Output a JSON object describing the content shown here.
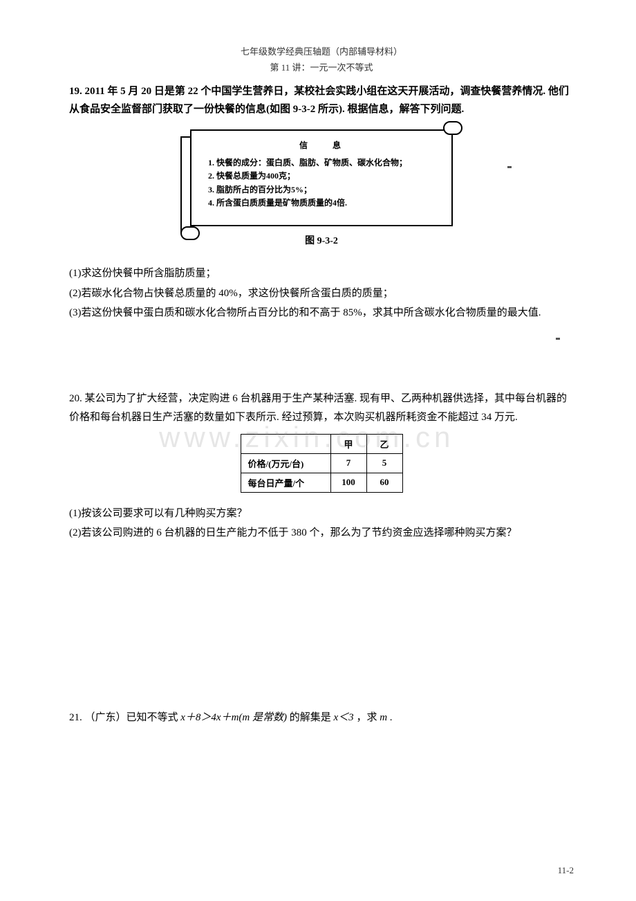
{
  "header": {
    "line1": "七年级数学经典压轴题（内部辅导材料）",
    "line2": "第 11 讲：一元一次不等式"
  },
  "q19": {
    "label": "19.",
    "intro": "2011 年 5 月 20 日是第 22 个中国学生营养日，某校社会实践小组在这天开展活动，调查快餐营养情况. 他们从食品安全监督部门获取了一份快餐的信息(如图 9-3-2 所示). 根据信息，解答下列问题.",
    "scroll": {
      "title": "信　息",
      "items": [
        "1. 快餐的成分：蛋白质、脂肪、矿物质、碳水化合物；",
        "2. 快餐总质量为400克；",
        "3. 脂肪所占的百分比为5%；",
        "4. 所含蛋白质质量是矿物质质量的4倍."
      ]
    },
    "caption": "图 9-3-2",
    "subs": [
      "(1)求这份快餐中所含脂肪质量；",
      "(2)若碳水化合物占快餐总质量的 40%，求这份快餐所含蛋白质的质量；",
      "(3)若这份快餐中蛋白质和碳水化合物所占百分比的和不高于 85%，求其中所含碳水化合物质量的最大值."
    ]
  },
  "q20": {
    "label": "20.",
    "intro": "某公司为了扩大经营，决定购进 6 台机器用于生产某种活塞. 现有甲、乙两种机器供选择，其中每台机器的价格和每台机器日生产活塞的数量如下表所示. 经过预算，本次购买机器所耗资金不能超过 34 万元.",
    "table": {
      "cols": [
        "",
        "甲",
        "乙"
      ],
      "rows": [
        {
          "label": "价格/(万元/台)",
          "c1": "7",
          "c2": "5"
        },
        {
          "label": "每台日产量/个",
          "c1": "100",
          "c2": "60"
        }
      ]
    },
    "subs": [
      "(1)按该公司要求可以有几种购买方案？",
      "(2)若该公司购进的 6 台机器的日生产能力不低于 380 个，那么为了节约资金应选择哪种购买方案？"
    ]
  },
  "q21": {
    "label": "21.",
    "text_a": "（广东）已知不等式 ",
    "expr": "x＋8＞4x＋m(m 是常数)",
    "text_b": "的解集是 ",
    "expr2": "x＜3",
    "text_c": "，求 ",
    "var_m": "m",
    "text_d": "."
  },
  "watermark": "www.zixin.com.cn",
  "page_num": "11-2",
  "colors": {
    "text": "#000000",
    "bg": "#ffffff",
    "border": "#000000",
    "watermark": "rgba(140,140,140,0.22)"
  }
}
